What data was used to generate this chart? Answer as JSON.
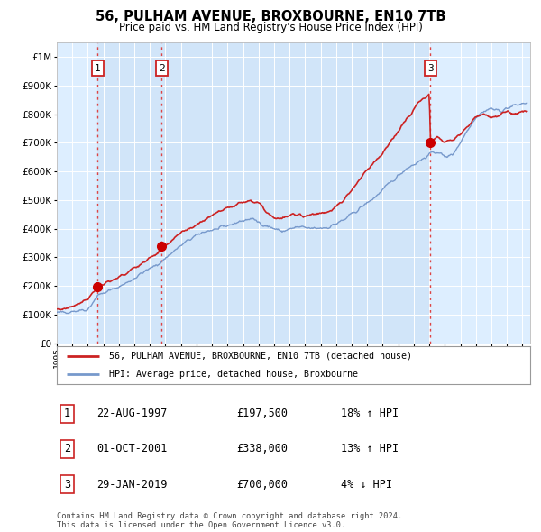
{
  "title": "56, PULHAM AVENUE, BROXBOURNE, EN10 7TB",
  "subtitle": "Price paid vs. HM Land Registry's House Price Index (HPI)",
  "yticks": [
    0,
    100000,
    200000,
    300000,
    400000,
    500000,
    600000,
    700000,
    800000,
    900000,
    1000000
  ],
  "xlim_start": 1995.0,
  "xlim_end": 2025.5,
  "ylim": [
    0,
    1050000
  ],
  "sales": [
    {
      "date_num": 1997.64,
      "price": 197500,
      "label": "1"
    },
    {
      "date_num": 2001.75,
      "price": 338000,
      "label": "2"
    },
    {
      "date_num": 2019.08,
      "price": 700000,
      "label": "3"
    }
  ],
  "vline_color": "#dd4444",
  "sale_dot_color": "#cc0000",
  "hpi_line_color": "#7799cc",
  "price_line_color": "#cc2222",
  "legend_label_price": "56, PULHAM AVENUE, BROXBOURNE, EN10 7TB (detached house)",
  "legend_label_hpi": "HPI: Average price, detached house, Broxbourne",
  "transaction_rows": [
    {
      "num": "1",
      "date": "22-AUG-1997",
      "price": "£197,500",
      "hpi": "18% ↑ HPI"
    },
    {
      "num": "2",
      "date": "01-OCT-2001",
      "price": "£338,000",
      "hpi": "13% ↑ HPI"
    },
    {
      "num": "3",
      "date": "29-JAN-2019",
      "price": "£700,000",
      "hpi": "4% ↓ HPI"
    }
  ],
  "footnote": "Contains HM Land Registry data © Crown copyright and database right 2024.\nThis data is licensed under the Open Government Licence v3.0.",
  "background_color": "#ffffff",
  "plot_bg_color": "#ddeeff",
  "sale_band_color": "#c8ddf0",
  "grid_color": "#ffffff"
}
